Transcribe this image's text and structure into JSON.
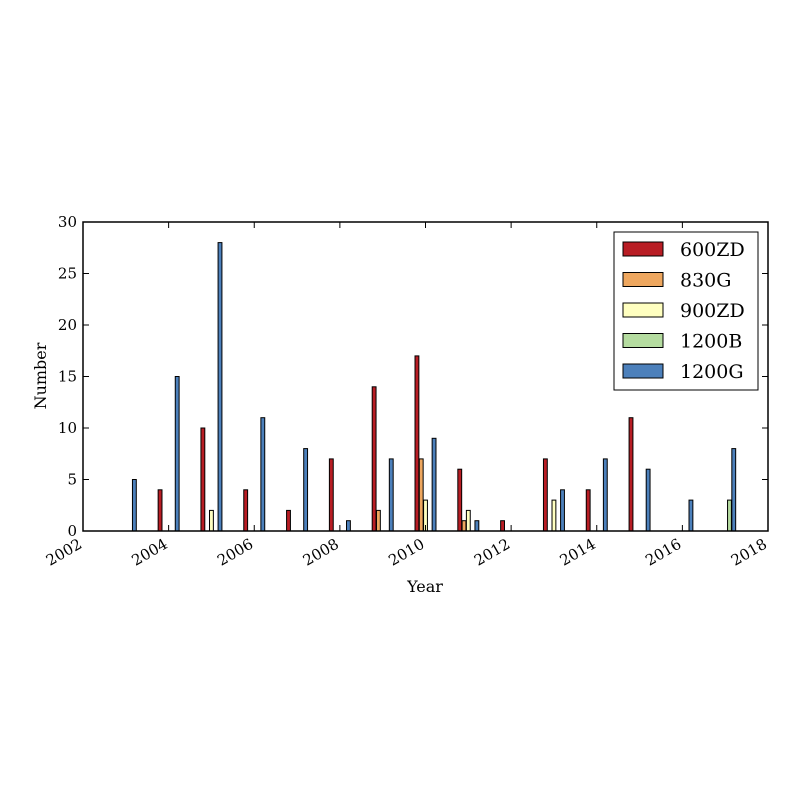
{
  "chart_data": {
    "type": "bar",
    "title": "",
    "xlabel": "Year",
    "ylabel": "Number",
    "xlim": [
      2002,
      2018
    ],
    "ylim": [
      0,
      30
    ],
    "xticks": [
      "2002",
      "2004",
      "2006",
      "2008",
      "2010",
      "2012",
      "2014",
      "2016",
      "2018"
    ],
    "yticks": [
      "0",
      "5",
      "10",
      "15",
      "20",
      "25",
      "30"
    ],
    "legend_position": "top-right",
    "grid": false,
    "x": [
      2003,
      2004,
      2005,
      2006,
      2007,
      2008,
      2009,
      2010,
      2011,
      2012,
      2013,
      2014,
      2015,
      2016,
      2017
    ],
    "series": [
      {
        "name": "600ZD",
        "color": "#b81d24",
        "values": [
          0,
          4,
          10,
          4,
          2,
          7,
          14,
          17,
          6,
          1,
          7,
          4,
          11,
          0,
          0
        ]
      },
      {
        "name": "830G",
        "color": "#eea75f",
        "values": [
          0,
          0,
          0,
          0,
          0,
          0,
          2,
          7,
          1,
          0,
          0,
          0,
          0,
          0,
          0
        ]
      },
      {
        "name": "900ZD",
        "color": "#ffffc0",
        "values": [
          0,
          0,
          2,
          0,
          0,
          0,
          0,
          3,
          2,
          0,
          3,
          0,
          0,
          0,
          0
        ]
      },
      {
        "name": "1200B",
        "color": "#b5dca0",
        "values": [
          0,
          0,
          0,
          0,
          0,
          0,
          0,
          0,
          0,
          0,
          0,
          0,
          0,
          0,
          3
        ]
      },
      {
        "name": "1200G",
        "color": "#4c80bb",
        "values": [
          5,
          15,
          28,
          11,
          8,
          1,
          7,
          9,
          1,
          0,
          4,
          7,
          6,
          3,
          8
        ]
      }
    ]
  }
}
